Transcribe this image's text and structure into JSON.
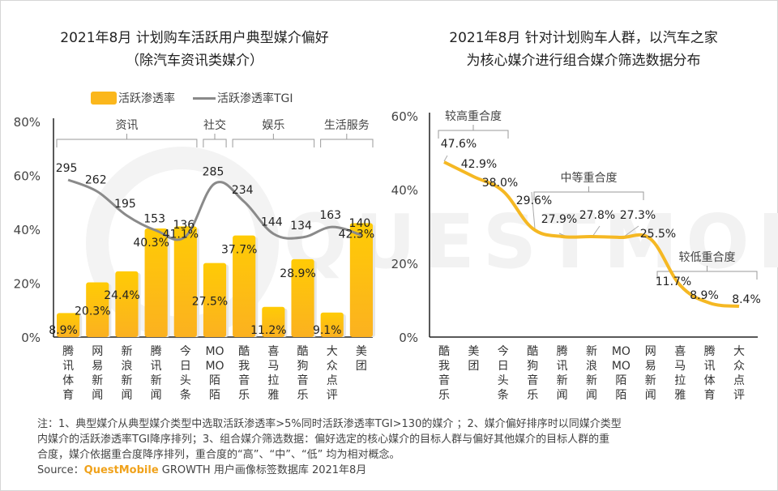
{
  "watermark": "QUESTMOBILE",
  "left_title": [
    "2021年8月 计划购车活跃用户典型媒介偏好",
    "（除汽车资讯类媒介）"
  ],
  "right_title": [
    "2021年8月 针对计划购车人群，以汽车之家",
    "为核心媒介进行组合媒介筛选数据分布"
  ],
  "legend": {
    "bar_label": "活跃渗透率",
    "line_label": "活跃渗透率TGI"
  },
  "colors": {
    "bar": "#fbb71c",
    "bar_top": "#ffcc00",
    "tgi_line": "#8a8a8a",
    "overlap_line": "#f5b823",
    "brand": "#f0a21b"
  },
  "notes": [
    "注：1、典型媒介从典型媒介类型中选取活跃渗透率>5%同时活跃渗透率TGI>130的媒介 ；2、媒介偏好排序时以同媒介类型",
    "内媒介的活跃渗透率TGI降序排列；3、组合媒介筛选数据：偏好选定的核心媒介的目标人群与偏好其他媒介的目标人群的重",
    "合度，媒介依据重合度降序排列，重合度的“高”、“中”、“低” 均为相对概念。"
  ],
  "source": {
    "prefix": "Source：",
    "brand": "QuestMobile",
    "suffix": " GROWTH 用户画像标签数据库 2021年8月"
  },
  "chart_data": [
    {
      "type": "bar",
      "title": "2021年8月 计划购车活跃用户典型媒介偏好（除汽车资讯类媒介）",
      "categories": [
        "腾讯体育",
        "网易新闻",
        "新浪新闻",
        "腾讯新闻",
        "今日头条",
        "MOMO陌陌",
        "酷我音乐",
        "喜马拉雅",
        "酷狗音乐",
        "大众点评",
        "美团"
      ],
      "category_labels": [
        [
          "腾",
          "讯",
          "体",
          "育"
        ],
        [
          "网",
          "易",
          "新",
          "闻"
        ],
        [
          "新",
          "浪",
          "新",
          "闻"
        ],
        [
          "腾",
          "讯",
          "新",
          "闻"
        ],
        [
          "今",
          "日",
          "头",
          "条"
        ],
        [
          "MO",
          "MO",
          "陌",
          "陌"
        ],
        [
          "酷",
          "我",
          "音",
          "乐"
        ],
        [
          "喜",
          "马",
          "拉",
          "雅"
        ],
        [
          "酷",
          "狗",
          "音",
          "乐"
        ],
        [
          "大",
          "众",
          "点",
          "评"
        ],
        [
          "美",
          "团"
        ]
      ],
      "series": [
        {
          "name": "活跃渗透率",
          "type": "bar",
          "values": [
            8.9,
            20.3,
            24.4,
            40.3,
            41.1,
            27.5,
            37.7,
            11.2,
            28.9,
            9.1,
            42.3
          ],
          "labels": [
            "8.9%",
            "20.3%",
            "24.4%",
            "40.3%",
            "41.1%",
            "27.5%",
            "37.7%",
            "11.2%",
            "28.9%",
            "9.1%",
            "42.3%"
          ]
        },
        {
          "name": "活跃渗透率TGI",
          "type": "line",
          "values": [
            295,
            262,
            195,
            153,
            136,
            285,
            234,
            144,
            134,
            163,
            140
          ],
          "labels": [
            "295",
            "262",
            "195",
            "153",
            "136",
            "285",
            "234",
            "144",
            "134",
            "163",
            "140"
          ]
        }
      ],
      "groups": [
        {
          "label": "资讯",
          "from": 0,
          "to": 4
        },
        {
          "label": "社交",
          "from": 5,
          "to": 5
        },
        {
          "label": "娱乐",
          "from": 6,
          "to": 8
        },
        {
          "label": "生活服务",
          "from": 9,
          "to": 10
        }
      ],
      "yticks": [
        "0%",
        "20%",
        "40%",
        "60%",
        "80%"
      ],
      "ylim": [
        0,
        80
      ],
      "legend_position": "top"
    },
    {
      "type": "line",
      "title": "2021年8月 针对计划购车人群，以汽车之家为核心媒介进行组合媒介筛选数据分布",
      "categories": [
        "酷我音乐",
        "美团",
        "今日头条",
        "酷狗音乐",
        "腾讯新闻",
        "新浪新闻",
        "MOMO陌陌",
        "网易新闻",
        "喜马拉雅",
        "腾讯体育",
        "大众点评"
      ],
      "category_labels": [
        [
          "酷",
          "我",
          "音",
          "乐"
        ],
        [
          "美",
          "团"
        ],
        [
          "今",
          "日",
          "头",
          "条"
        ],
        [
          "酷",
          "狗",
          "音",
          "乐"
        ],
        [
          "腾",
          "讯",
          "新",
          "闻"
        ],
        [
          "新",
          "浪",
          "新",
          "闻"
        ],
        [
          "MO",
          "MO",
          "陌",
          "陌"
        ],
        [
          "网",
          "易",
          "新",
          "闻"
        ],
        [
          "喜",
          "马",
          "拉",
          "雅"
        ],
        [
          "腾",
          "讯",
          "体",
          "育"
        ],
        [
          "大",
          "众",
          "点",
          "评"
        ]
      ],
      "values": [
        47.6,
        42.9,
        38.0,
        29.6,
        27.9,
        27.8,
        27.3,
        25.5,
        11.7,
        8.9,
        8.4
      ],
      "labels": [
        "47.6%",
        "42.9%",
        "38.0%",
        "29.6%",
        "27.9%",
        "27.8%",
        "27.3%",
        "25.5%",
        "11.7%",
        "8.9%",
        "8.4%"
      ],
      "groups": [
        {
          "label": "较高重合度",
          "from": 0,
          "to": 2
        },
        {
          "label": "中等重合度",
          "from": 3,
          "to": 6
        },
        {
          "label": "较低重合度",
          "from": 8,
          "to": 10
        }
      ],
      "yticks": [
        "0%",
        "20%",
        "40%",
        "60%"
      ],
      "ylim": [
        0,
        60
      ]
    }
  ]
}
